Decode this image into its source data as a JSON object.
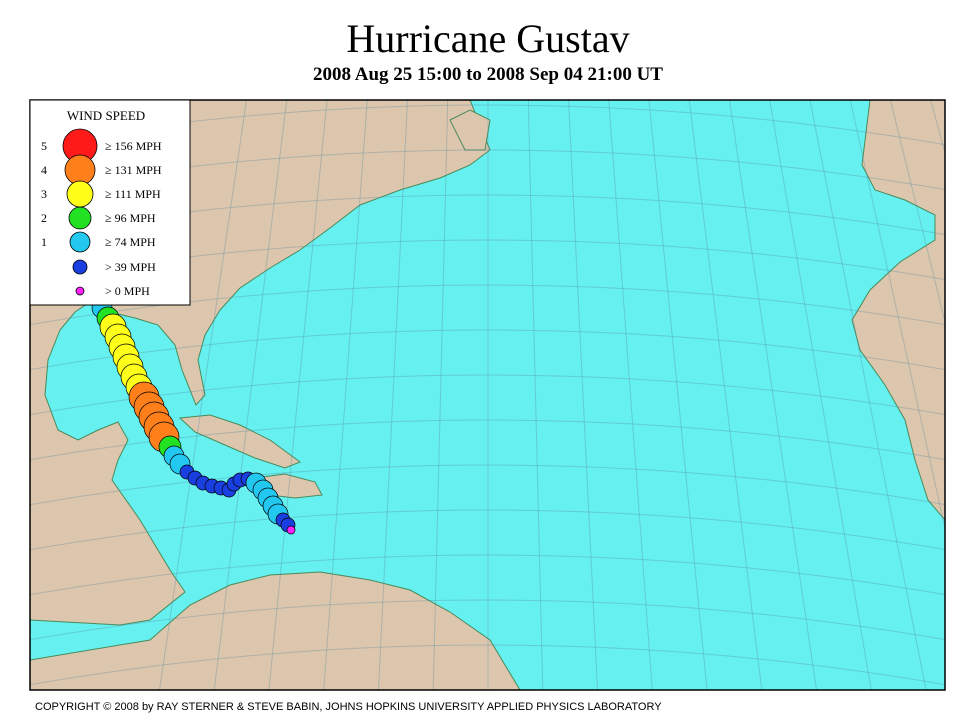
{
  "title": "Hurricane Gustav",
  "subtitle": "2008 Aug 25 15:00 to 2008 Sep 04 21:00 UT",
  "legend": {
    "title": "WIND SPEED",
    "items": [
      {
        "category": "5",
        "label": "≥ 156 MPH",
        "color": "#ff1a1a"
      },
      {
        "category": "4",
        "label": "≥ 131 MPH",
        "color": "#ff7f1a"
      },
      {
        "category": "3",
        "label": "≥ 111 MPH",
        "color": "#ffff1a"
      },
      {
        "category": "2",
        "label": "≥ 96 MPH",
        "color": "#22e022"
      },
      {
        "category": "1",
        "label": "≥ 74 MPH",
        "color": "#22c8f0"
      },
      {
        "label": "> 39 MPH",
        "color": "#1a3fe0"
      },
      {
        "label": "> 0 MPH",
        "color": "#ff22ff"
      }
    ]
  },
  "copyright": "COPYRIGHT © 2008 by RAY STERNER & STEVE BABIN, JOHNS HOPKINS UNIVERSITY APPLIED PHYSICS LABORATORY"
}
